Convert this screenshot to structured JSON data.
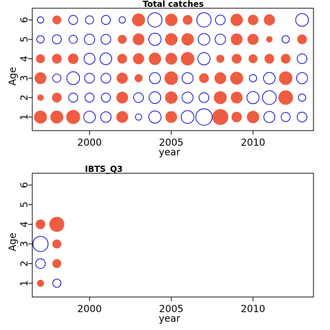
{
  "colors": {
    "positive": "#EE5C42",
    "negative": "#0000CD",
    "axis": "#000000"
  },
  "chart_data": [
    {
      "type": "scatter",
      "title": "Total catches",
      "xlabel": "year",
      "ylabel": "Age",
      "xlim": [
        1996.5,
        2013.7
      ],
      "ylim": [
        0.3,
        6.6
      ],
      "xticks": [
        2000,
        2005,
        2010
      ],
      "yticks": [
        1,
        2,
        3,
        4,
        5,
        6
      ],
      "grid": false,
      "legend": "none",
      "note": "bubble size = absolute residual magnitude; filled red = positive, open blue = negative",
      "points": [
        {
          "x": 1997,
          "y": 6,
          "v": -0.15
        },
        {
          "x": 1997,
          "y": 5,
          "v": -0.2
        },
        {
          "x": 1997,
          "y": 4,
          "v": 0.25
        },
        {
          "x": 1997,
          "y": 3,
          "v": 0.45
        },
        {
          "x": 1997,
          "y": 2,
          "v": 0.12
        },
        {
          "x": 1997,
          "y": 1,
          "v": 0.55
        },
        {
          "x": 1998,
          "y": 6,
          "v": 0.25
        },
        {
          "x": 1998,
          "y": 5,
          "v": -0.3
        },
        {
          "x": 1998,
          "y": 4,
          "v": 0.3
        },
        {
          "x": 1998,
          "y": 3,
          "v": -0.25
        },
        {
          "x": 1998,
          "y": 2,
          "v": 0.3
        },
        {
          "x": 1998,
          "y": 1,
          "v": 0.55
        },
        {
          "x": 1999,
          "y": 6,
          "v": -0.3
        },
        {
          "x": 1999,
          "y": 5,
          "v": -0.25
        },
        {
          "x": 1999,
          "y": 4,
          "v": 0.35
        },
        {
          "x": 1999,
          "y": 3,
          "v": -0.6
        },
        {
          "x": 1999,
          "y": 2,
          "v": -0.3
        },
        {
          "x": 1999,
          "y": 1,
          "v": 0.65
        },
        {
          "x": 2000,
          "y": 6,
          "v": -0.25
        },
        {
          "x": 2000,
          "y": 5,
          "v": -0.4
        },
        {
          "x": 2000,
          "y": 4,
          "v": -0.45
        },
        {
          "x": 2000,
          "y": 3,
          "v": -0.35
        },
        {
          "x": 2000,
          "y": 2,
          "v": -0.3
        },
        {
          "x": 2000,
          "y": 1,
          "v": -0.5
        },
        {
          "x": 2001,
          "y": 6,
          "v": -0.3
        },
        {
          "x": 2001,
          "y": 5,
          "v": -0.35
        },
        {
          "x": 2001,
          "y": 4,
          "v": -0.5
        },
        {
          "x": 2001,
          "y": 3,
          "v": -0.35
        },
        {
          "x": 2001,
          "y": 2,
          "v": -0.3
        },
        {
          "x": 2001,
          "y": 1,
          "v": -0.4
        },
        {
          "x": 2002,
          "y": 6,
          "v": -0.15
        },
        {
          "x": 2002,
          "y": 5,
          "v": 0.25
        },
        {
          "x": 2002,
          "y": 4,
          "v": 0.3
        },
        {
          "x": 2002,
          "y": 3,
          "v": 0.4
        },
        {
          "x": 2002,
          "y": 2,
          "v": 0.45
        },
        {
          "x": 2002,
          "y": 1,
          "v": 0.45
        },
        {
          "x": 2003,
          "y": 6,
          "v": 0.55
        },
        {
          "x": 2003,
          "y": 5,
          "v": 0.45
        },
        {
          "x": 2003,
          "y": 4,
          "v": 0.4
        },
        {
          "x": 2003,
          "y": 3,
          "v": 0.2
        },
        {
          "x": 2003,
          "y": 2,
          "v": -0.35
        },
        {
          "x": 2003,
          "y": 1,
          "v": -0.15
        },
        {
          "x": 2004,
          "y": 6,
          "v": -0.75
        },
        {
          "x": 2004,
          "y": 5,
          "v": -0.55
        },
        {
          "x": 2004,
          "y": 4,
          "v": 0.5
        },
        {
          "x": 2004,
          "y": 3,
          "v": -0.45
        },
        {
          "x": 2004,
          "y": 2,
          "v": -0.5
        },
        {
          "x": 2004,
          "y": 1,
          "v": -0.55
        },
        {
          "x": 2005,
          "y": 6,
          "v": 0.5
        },
        {
          "x": 2005,
          "y": 5,
          "v": 0.5
        },
        {
          "x": 2005,
          "y": 4,
          "v": 0.45
        },
        {
          "x": 2005,
          "y": 3,
          "v": 0.6
        },
        {
          "x": 2005,
          "y": 2,
          "v": 0.5
        },
        {
          "x": 2005,
          "y": 1,
          "v": 0.45
        },
        {
          "x": 2006,
          "y": 6,
          "v": 0.3
        },
        {
          "x": 2006,
          "y": 5,
          "v": 0.5
        },
        {
          "x": 2006,
          "y": 4,
          "v": 0.6
        },
        {
          "x": 2006,
          "y": 3,
          "v": -0.45
        },
        {
          "x": 2006,
          "y": 2,
          "v": -0.45
        },
        {
          "x": 2006,
          "y": 1,
          "v": -0.6
        },
        {
          "x": 2007,
          "y": 6,
          "v": -0.75
        },
        {
          "x": 2007,
          "y": 5,
          "v": -0.5
        },
        {
          "x": 2007,
          "y": 4,
          "v": -0.55
        },
        {
          "x": 2007,
          "y": 3,
          "v": 0.3
        },
        {
          "x": 2007,
          "y": 2,
          "v": -0.35
        },
        {
          "x": 2007,
          "y": 1,
          "v": -1.0
        },
        {
          "x": 2008,
          "y": 6,
          "v": -0.35
        },
        {
          "x": 2008,
          "y": 5,
          "v": -0.4
        },
        {
          "x": 2008,
          "y": 4,
          "v": 0.2
        },
        {
          "x": 2008,
          "y": 3,
          "v": 0.45
        },
        {
          "x": 2008,
          "y": 2,
          "v": 0.55
        },
        {
          "x": 2008,
          "y": 1,
          "v": 0.85
        },
        {
          "x": 2009,
          "y": 6,
          "v": 0.5
        },
        {
          "x": 2009,
          "y": 5,
          "v": 0.45
        },
        {
          "x": 2009,
          "y": 4,
          "v": 0.3
        },
        {
          "x": 2009,
          "y": 3,
          "v": 0.55
        },
        {
          "x": 2009,
          "y": 2,
          "v": 0.45
        },
        {
          "x": 2009,
          "y": 1,
          "v": 0.35
        },
        {
          "x": 2010,
          "y": 6,
          "v": 0.35
        },
        {
          "x": 2010,
          "y": 5,
          "v": 0.4
        },
        {
          "x": 2010,
          "y": 4,
          "v": 0.25
        },
        {
          "x": 2010,
          "y": 3,
          "v": -0.2
        },
        {
          "x": 2010,
          "y": 2,
          "v": -0.55
        },
        {
          "x": 2010,
          "y": 1,
          "v": 0.5
        },
        {
          "x": 2011,
          "y": 6,
          "v": 0.4
        },
        {
          "x": 2011,
          "y": 5,
          "v": 0.12
        },
        {
          "x": 2011,
          "y": 4,
          "v": 0.3
        },
        {
          "x": 2011,
          "y": 3,
          "v": -0.5
        },
        {
          "x": 2011,
          "y": 2,
          "v": -0.7
        },
        {
          "x": 2011,
          "y": 1,
          "v": -0.45
        },
        {
          "x": 2012,
          "y": 6,
          "v": 0
        },
        {
          "x": 2012,
          "y": 5,
          "v": -0.2
        },
        {
          "x": 2012,
          "y": 4,
          "v": 0.3
        },
        {
          "x": 2012,
          "y": 3,
          "v": 0.6
        },
        {
          "x": 2012,
          "y": 2,
          "v": 0.7
        },
        {
          "x": 2012,
          "y": 1,
          "v": -0.3
        },
        {
          "x": 2013,
          "y": 6,
          "v": -0.6
        },
        {
          "x": 2013,
          "y": 5,
          "v": 0.3
        },
        {
          "x": 2013,
          "y": 4,
          "v": -0.35
        },
        {
          "x": 2013,
          "y": 3,
          "v": -0.45
        },
        {
          "x": 2013,
          "y": 2,
          "v": -0.2
        },
        {
          "x": 2013,
          "y": 1,
          "v": -0.35
        }
      ]
    },
    {
      "type": "scatter",
      "title": "IBTS_Q3",
      "xlabel": "year",
      "ylabel": "Age",
      "xlim": [
        1996.5,
        2013.7
      ],
      "ylim": [
        0.3,
        6.6
      ],
      "xticks": [
        2000,
        2005,
        2010
      ],
      "yticks": [
        1,
        2,
        3,
        4,
        5,
        6
      ],
      "grid": false,
      "legend": "none",
      "points": [
        {
          "x": 1997,
          "y": 4,
          "v": 0.3
        },
        {
          "x": 1997,
          "y": 3,
          "v": -0.85
        },
        {
          "x": 1997,
          "y": 2,
          "v": -0.35
        },
        {
          "x": 1997,
          "y": 1,
          "v": 0.15
        },
        {
          "x": 1998,
          "y": 4,
          "v": 0.75
        },
        {
          "x": 1998,
          "y": 3,
          "v": 0.25
        },
        {
          "x": 1998,
          "y": 2,
          "v": 0.25
        },
        {
          "x": 1998,
          "y": 1,
          "v": -0.25
        }
      ]
    }
  ]
}
